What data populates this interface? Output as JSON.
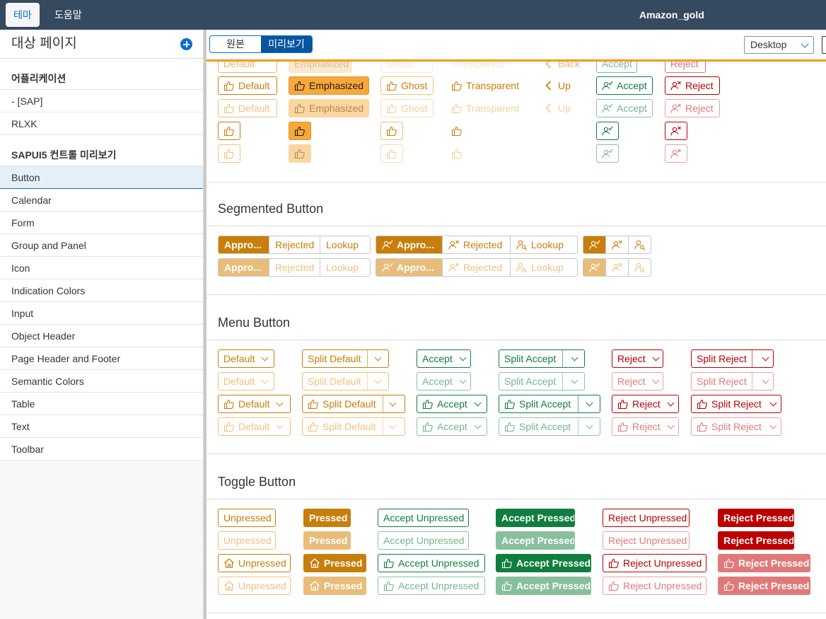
{
  "shell": {
    "tab_theme": "테마",
    "tab_help": "도움말",
    "theme_name": "Amazon_gold"
  },
  "sidebar": {
    "title": "대상 페이지",
    "groups": [
      {
        "label": "어플리케이션",
        "items": [
          "- [SAP]",
          "RLXK"
        ]
      },
      {
        "label": "SAPUI5 컨트롤 미리보기",
        "items": [
          "Button",
          "Calendar",
          "Form",
          "Group and Panel",
          "Icon",
          "Indication Colors",
          "Input",
          "Object Header",
          "Page Header and Footer",
          "Semantic Colors",
          "Table",
          "Text",
          "Toolbar"
        ]
      }
    ],
    "selected_item": "Button"
  },
  "toolbar": {
    "original_label": "원본",
    "preview_label": "미리보기",
    "device_value": "Desktop"
  },
  "buttons": {
    "default": "Default",
    "emphasized": "Emphasized",
    "ghost": "Ghost",
    "transparent": "Transparent",
    "back": "Back",
    "up": "Up",
    "accept": "Accept",
    "reject": "Reject"
  },
  "segmented": {
    "title": "Segmented Button",
    "approve": "Appro...",
    "rejected": "Rejected",
    "lookup": "Lookup"
  },
  "menu": {
    "title": "Menu Button",
    "default": "Default",
    "split_default": "Split Default",
    "accept": "Accept",
    "split_accept": "Split Accept",
    "reject": "Reject",
    "split_reject": "Split Reject"
  },
  "toggle": {
    "title": "Toggle Button",
    "unpressed": "Unpressed",
    "pressed": "Pressed",
    "accept_unpressed": "Accept Unpressed",
    "accept_pressed": "Accept Pressed",
    "reject_unpressed": "Reject Unpressed",
    "reject_pressed": "Reject Pressed"
  },
  "colors": {
    "shell": "#354a5f",
    "brand_gold": "#c87e0a",
    "emphasized": "#f8a83a",
    "accept": "#107e3e",
    "reject": "#bb0000",
    "selection_blue": "#0a6ed1"
  }
}
